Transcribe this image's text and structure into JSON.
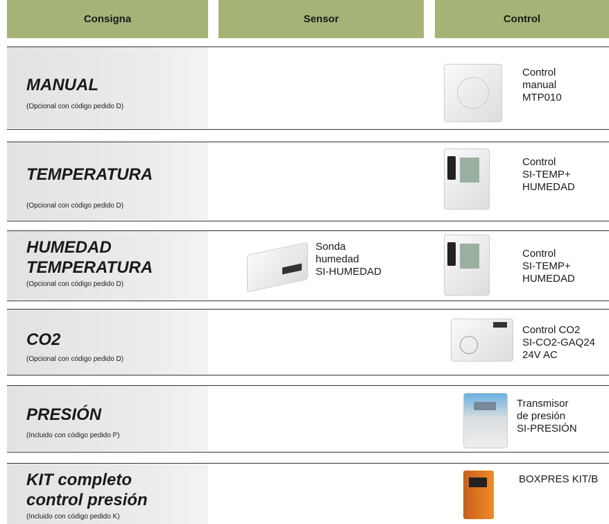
{
  "header": {
    "columns": [
      "Consigna",
      "Sensor",
      "Control"
    ]
  },
  "rows": [
    {
      "title": [
        "MANUAL"
      ],
      "note": "(Opcional con código pedido D)",
      "control": [
        "Control",
        "manual",
        "MTP010"
      ]
    },
    {
      "title": [
        "TEMPERATURA"
      ],
      "note": "(Opcional con código pedido D)",
      "control": [
        "Control",
        "SI-TEMP+",
        "HUMEDAD"
      ]
    },
    {
      "title": [
        "HUMEDAD",
        "TEMPERATURA"
      ],
      "note": "(Opcional con código pedido D)",
      "sensor": [
        "Sonda",
        "humedad",
        "SI-HUMEDAD"
      ],
      "control": [
        "Control",
        "SI-TEMP+",
        "HUMEDAD"
      ]
    },
    {
      "title": [
        "CO2"
      ],
      "note": "(Opcional con código pedido D)",
      "control": [
        "Control CO2",
        "SI-CO2-GAQ24",
        "24V AC"
      ]
    },
    {
      "title": [
        "PRESIÓN"
      ],
      "note": "(Incluido con código pedido P)",
      "control": [
        "Transmisor",
        "de presión",
        "SI-PRESIÓN"
      ]
    },
    {
      "title": [
        "KIT completo",
        "control presión"
      ],
      "note": "(Incluido con código pedido K)",
      "control": [
        "BOXPRES KIT/B"
      ]
    }
  ]
}
